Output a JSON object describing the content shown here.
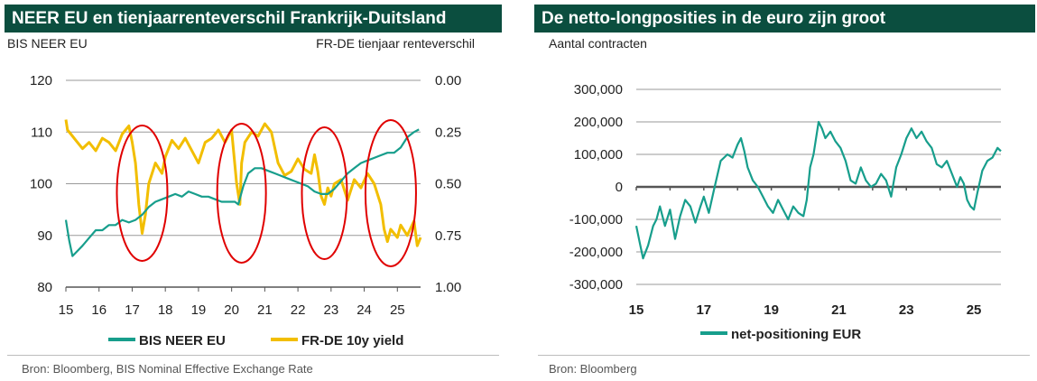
{
  "colors": {
    "title_bg": "#0b4e3f",
    "title_fg": "#ffffff",
    "teal": "#179e8c",
    "gold": "#f2be00",
    "red": "#e00000",
    "grid": "#9a9a9a",
    "axis": "#555555"
  },
  "left": {
    "title": "NEER EU en tienjaarrenteverschil Frankrijk-Duitsland",
    "left_axis_label": "BIS NEER EU",
    "right_axis_label": "FR-DE tienjaar renteverschil",
    "source": "Bron:  Bloomberg, BIS Nominal Effective Exchange Rate"
  },
  "right": {
    "title": "De netto-longposities in de euro zijn groot",
    "axis_label": "Aantal contracten",
    "source": "Bron: Bloomberg"
  },
  "chart_data": [
    {
      "type": "line",
      "title": "NEER EU en tienjaarrenteverschil Frankrijk-Duitsland",
      "xlabel": "",
      "ylabel": "BIS NEER EU",
      "y2label": "FR-DE tienjaar renteverschil",
      "xlim": [
        15,
        25.7
      ],
      "x_ticks": [
        15,
        16,
        17,
        18,
        19,
        20,
        21,
        22,
        23,
        24,
        25
      ],
      "x_tick_labels": [
        "15",
        "16",
        "17",
        "18",
        "19",
        "20",
        "21",
        "22",
        "23",
        "24",
        "25"
      ],
      "ylim": [
        80,
        120
      ],
      "y_ticks": [
        80,
        90,
        100,
        110,
        120
      ],
      "y_tick_labels": [
        "80",
        "90",
        "100",
        "110",
        "120"
      ],
      "y2lim": [
        0.0,
        1.0
      ],
      "y2_inverted": true,
      "y2_ticks": [
        0.0,
        0.25,
        0.5,
        0.75,
        1.0
      ],
      "y2_tick_labels": [
        "0.00",
        "0.25",
        "0.50",
        "0.75",
        "1.00"
      ],
      "grid": true,
      "legend_position": "bottom",
      "series": [
        {
          "name": "BIS NEER EU",
          "axis": "left",
          "color": "#179e8c",
          "x": [
            15.0,
            15.1,
            15.2,
            15.35,
            15.5,
            15.7,
            15.9,
            16.1,
            16.3,
            16.5,
            16.7,
            16.9,
            17.1,
            17.3,
            17.5,
            17.7,
            17.9,
            18.1,
            18.3,
            18.5,
            18.7,
            18.9,
            19.1,
            19.3,
            19.5,
            19.7,
            19.9,
            20.1,
            20.2,
            20.35,
            20.5,
            20.7,
            20.9,
            21.1,
            21.3,
            21.5,
            21.7,
            21.9,
            22.1,
            22.3,
            22.5,
            22.7,
            22.9,
            23.1,
            23.3,
            23.5,
            23.7,
            23.9,
            24.1,
            24.3,
            24.5,
            24.7,
            24.9,
            25.1,
            25.3,
            25.5,
            25.65
          ],
          "values": [
            93,
            89,
            86,
            87,
            88,
            89.5,
            91,
            91,
            92,
            92,
            93,
            92.5,
            93,
            94,
            95.5,
            96.5,
            97,
            97.5,
            98,
            97.5,
            98.5,
            98,
            97.5,
            97.5,
            97,
            96.5,
            96.5,
            96.5,
            96,
            99.5,
            102,
            103,
            103,
            102.5,
            102,
            101.5,
            101,
            100.5,
            100,
            99.5,
            98.5,
            98,
            98,
            99,
            100.5,
            102,
            103,
            104,
            104.5,
            105,
            105.5,
            106,
            106,
            107,
            109,
            110,
            110.5
          ]
        },
        {
          "name": "FR-DE 10y yield",
          "axis": "right",
          "color": "#f2be00",
          "x": [
            15.0,
            15.05,
            15.15,
            15.3,
            15.5,
            15.7,
            15.9,
            16.1,
            16.3,
            16.5,
            16.7,
            16.9,
            17.0,
            17.1,
            17.15,
            17.2,
            17.3,
            17.4,
            17.5,
            17.7,
            17.9,
            18.0,
            18.2,
            18.4,
            18.6,
            18.8,
            19.0,
            19.2,
            19.4,
            19.6,
            19.8,
            20.0,
            20.15,
            20.25,
            20.3,
            20.4,
            20.6,
            20.8,
            21.0,
            21.2,
            21.4,
            21.6,
            21.8,
            22.0,
            22.2,
            22.4,
            22.5,
            22.6,
            22.7,
            22.8,
            22.9,
            23.0,
            23.1,
            23.3,
            23.5,
            23.7,
            23.9,
            24.1,
            24.3,
            24.5,
            24.6,
            24.7,
            24.8,
            25.0,
            25.1,
            25.3,
            25.5,
            25.6,
            25.7
          ],
          "values": [
            0.19,
            0.24,
            0.26,
            0.29,
            0.33,
            0.3,
            0.34,
            0.28,
            0.3,
            0.34,
            0.26,
            0.22,
            0.3,
            0.4,
            0.5,
            0.6,
            0.74,
            0.65,
            0.5,
            0.4,
            0.45,
            0.37,
            0.29,
            0.33,
            0.28,
            0.34,
            0.4,
            0.3,
            0.28,
            0.24,
            0.3,
            0.24,
            0.5,
            0.6,
            0.4,
            0.3,
            0.25,
            0.27,
            0.21,
            0.25,
            0.4,
            0.46,
            0.44,
            0.38,
            0.43,
            0.45,
            0.36,
            0.44,
            0.56,
            0.6,
            0.52,
            0.56,
            0.5,
            0.48,
            0.58,
            0.48,
            0.52,
            0.45,
            0.5,
            0.6,
            0.72,
            0.78,
            0.72,
            0.76,
            0.7,
            0.75,
            0.68,
            0.8,
            0.76
          ]
        }
      ],
      "annotations": [
        "red ellipse around 2017",
        "red ellipse around 2020",
        "red ellipse around 2022",
        "red ellipse around 2024-2025"
      ]
    },
    {
      "type": "line",
      "title": "De netto-longposities in de euro zijn groot",
      "xlabel": "",
      "ylabel": "Aantal contracten",
      "xlim": [
        15,
        25.8
      ],
      "x_ticks": [
        15,
        17,
        19,
        21,
        23,
        25
      ],
      "x_tick_labels": [
        "15",
        "17",
        "19",
        "21",
        "23",
        "25"
      ],
      "minor_x_ticks": [
        15,
        16,
        17,
        18,
        19,
        20,
        21,
        22,
        23,
        24,
        25
      ],
      "ylim": [
        -300000,
        300000
      ],
      "y_ticks": [
        -300000,
        -200000,
        -100000,
        0,
        100000,
        200000,
        300000
      ],
      "y_tick_labels": [
        "-300,000",
        "-200,000",
        "-100,000",
        "0",
        "100,000",
        "200,000",
        "300,000"
      ],
      "grid": true,
      "legend_position": "bottom",
      "series": [
        {
          "name": "net-positioning EUR",
          "color": "#179e8c",
          "x": [
            15.0,
            15.1,
            15.2,
            15.35,
            15.5,
            15.6,
            15.7,
            15.85,
            16.0,
            16.15,
            16.3,
            16.45,
            16.6,
            16.75,
            16.9,
            17.0,
            17.15,
            17.3,
            17.5,
            17.7,
            17.85,
            18.0,
            18.1,
            18.2,
            18.3,
            18.45,
            18.6,
            18.75,
            18.9,
            19.05,
            19.2,
            19.35,
            19.5,
            19.65,
            19.8,
            19.95,
            20.05,
            20.15,
            20.25,
            20.4,
            20.5,
            20.6,
            20.75,
            20.9,
            21.05,
            21.2,
            21.35,
            21.5,
            21.65,
            21.8,
            21.95,
            22.1,
            22.25,
            22.4,
            22.55,
            22.7,
            22.85,
            23.0,
            23.15,
            23.3,
            23.45,
            23.6,
            23.75,
            23.9,
            24.05,
            24.2,
            24.35,
            24.5,
            24.6,
            24.7,
            24.8,
            24.9,
            25.0,
            25.1,
            25.25,
            25.4,
            25.55,
            25.7,
            25.8
          ],
          "values": [
            -120000,
            -170000,
            -220000,
            -180000,
            -120000,
            -100000,
            -60000,
            -120000,
            -70000,
            -160000,
            -90000,
            -40000,
            -60000,
            -110000,
            -60000,
            -30000,
            -80000,
            -10000,
            80000,
            100000,
            90000,
            130000,
            150000,
            110000,
            60000,
            20000,
            0,
            -30000,
            -60000,
            -80000,
            -40000,
            -70000,
            -100000,
            -60000,
            -80000,
            -90000,
            -40000,
            60000,
            100000,
            200000,
            180000,
            150000,
            170000,
            140000,
            120000,
            80000,
            20000,
            10000,
            60000,
            20000,
            0,
            10000,
            40000,
            20000,
            -30000,
            60000,
            100000,
            150000,
            180000,
            150000,
            170000,
            140000,
            120000,
            70000,
            60000,
            80000,
            40000,
            0,
            30000,
            10000,
            -40000,
            -60000,
            -70000,
            -20000,
            50000,
            80000,
            90000,
            120000,
            110000
          ]
        }
      ]
    }
  ]
}
